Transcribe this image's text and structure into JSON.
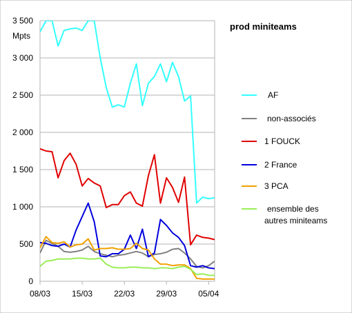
{
  "chart_data": {
    "type": "line",
    "title": "prod miniteams",
    "ylabel": "Mpts",
    "xlabel": "",
    "ylim": [
      0,
      3500
    ],
    "y_ticks": [
      0,
      500,
      1000,
      1500,
      2000,
      2500,
      3000,
      3500
    ],
    "y_tick_labels": [
      "0",
      "500",
      "1 000",
      "1 500",
      "2 000",
      "2 500",
      "3 000",
      "3 500"
    ],
    "x_ticks": [
      0,
      7,
      14,
      21,
      28
    ],
    "x_tick_labels": [
      "08/03",
      "15/03",
      "22/03",
      "29/03",
      "05/04"
    ],
    "grid": "horizontal",
    "legend_position": "right",
    "series": [
      {
        "name": "AF",
        "color": "#33ffff",
        "values": [
          3350,
          3700,
          3550,
          3160,
          3370,
          3390,
          3400,
          3370,
          3700,
          3600,
          3000,
          2600,
          2340,
          2370,
          2340,
          2660,
          2920,
          2360,
          2660,
          2750,
          2920,
          2680,
          2940,
          2750,
          2420,
          2490,
          1050,
          1130,
          1110,
          1120
        ]
      },
      {
        "name": "non-associés",
        "color": "#808080",
        "values": [
          380,
          550,
          510,
          470,
          400,
          390,
          400,
          420,
          470,
          400,
          370,
          350,
          330,
          350,
          360,
          380,
          400,
          380,
          330,
          360,
          370,
          390,
          430,
          440,
          380,
          300,
          200,
          180,
          210,
          270
        ]
      },
      {
        "name": "1 FOUCK",
        "color": "#e00000",
        "values": [
          1780,
          1750,
          1740,
          1390,
          1620,
          1720,
          1570,
          1280,
          1380,
          1320,
          1280,
          990,
          1030,
          1030,
          1150,
          1200,
          1050,
          1010,
          1420,
          1700,
          1050,
          1390,
          1260,
          1060,
          1400,
          490,
          620,
          590,
          580,
          560
        ]
      },
      {
        "name": "2 France",
        "color": "#0000dd",
        "values": [
          520,
          510,
          480,
          470,
          500,
          460,
          690,
          870,
          1050,
          800,
          340,
          330,
          370,
          370,
          430,
          620,
          440,
          700,
          330,
          380,
          830,
          750,
          650,
          590,
          480,
          210,
          190,
          210,
          180,
          170
        ]
      },
      {
        "name": "3 PCA",
        "color": "#f0a000",
        "values": [
          450,
          600,
          520,
          510,
          530,
          460,
          490,
          500,
          570,
          420,
          440,
          440,
          450,
          430,
          430,
          440,
          510,
          440,
          420,
          300,
          230,
          230,
          210,
          220,
          220,
          170,
          40,
          30,
          30,
          30
        ]
      },
      {
        "name": "ensemble des autres miniteams",
        "color": "#99ee55",
        "values": [
          200,
          270,
          280,
          300,
          300,
          300,
          310,
          310,
          300,
          300,
          310,
          230,
          190,
          180,
          180,
          190,
          190,
          180,
          180,
          170,
          180,
          180,
          170,
          190,
          200,
          160,
          90,
          100,
          80,
          80
        ]
      }
    ]
  }
}
